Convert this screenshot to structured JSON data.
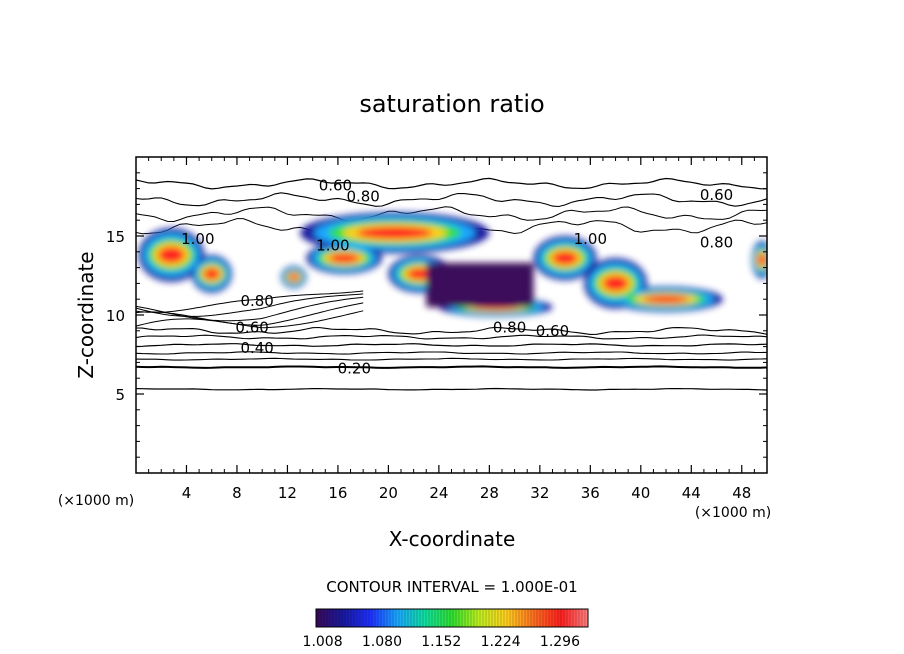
{
  "chart_data": {
    "type": "heatmap",
    "title": "saturation ratio",
    "xlabel": "X-coordinate",
    "ylabel": "Z-coordinate",
    "x_unit": "(×1000 m)",
    "z_unit": "(×1000 m)",
    "xlim": [
      0,
      50
    ],
    "ylim": [
      0,
      20
    ],
    "x_ticks": [
      "4",
      "8",
      "12",
      "16",
      "20",
      "24",
      "28",
      "32",
      "36",
      "40",
      "44",
      "48"
    ],
    "y_ticks": [
      "5",
      "10",
      "15"
    ],
    "contour_interval_text": "CONTOUR INTERVAL = 1.000E-01",
    "contour_labels": [
      {
        "text": "0.60",
        "x": 15.8,
        "z": 18.2
      },
      {
        "text": "0.80",
        "x": 18.0,
        "z": 17.5
      },
      {
        "text": "0.60",
        "x": 46.0,
        "z": 17.6
      },
      {
        "text": "1.00",
        "x": 4.9,
        "z": 14.8
      },
      {
        "text": "1.00",
        "x": 15.6,
        "z": 14.4
      },
      {
        "text": "1.00",
        "x": 36.0,
        "z": 14.8
      },
      {
        "text": "0.80",
        "x": 46.0,
        "z": 14.6
      },
      {
        "text": "0.80",
        "x": 9.6,
        "z": 10.9
      },
      {
        "text": "0.60",
        "x": 9.2,
        "z": 9.2
      },
      {
        "text": "0.80",
        "x": 29.6,
        "z": 9.2
      },
      {
        "text": "0.60",
        "x": 33.0,
        "z": 9.0
      },
      {
        "text": "0.40",
        "x": 9.6,
        "z": 7.9
      },
      {
        "text": "0.20",
        "x": 17.3,
        "z": 6.6
      }
    ],
    "colorbar": {
      "tick_labels": [
        "1.008",
        "1.080",
        "1.152",
        "1.224",
        "1.296"
      ],
      "range": [
        1.0,
        1.33
      ],
      "colormap": [
        "#3a0a5a",
        "#1a1aa0",
        "#2030ff",
        "#1aa8ff",
        "#10e0a0",
        "#30e030",
        "#c0f020",
        "#ffd020",
        "#ff7020",
        "#ff2020",
        "#ff8080"
      ]
    },
    "grid": false,
    "legend": "colorbar-bottom"
  }
}
